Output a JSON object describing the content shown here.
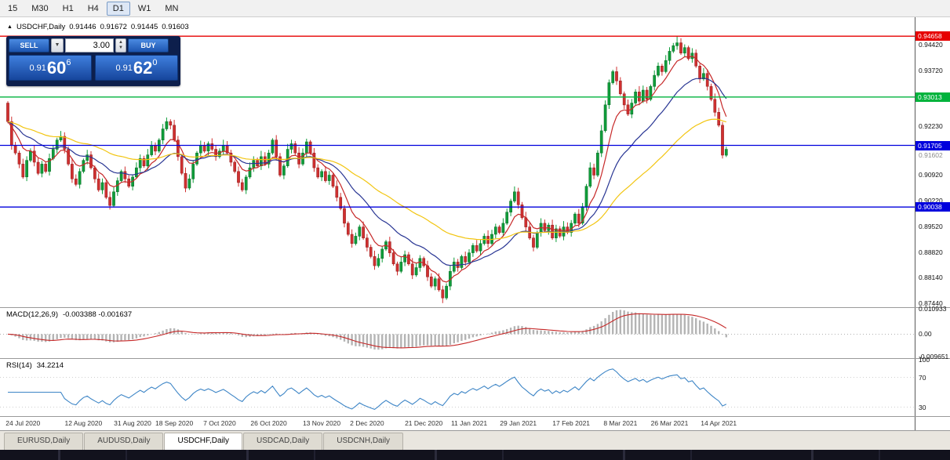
{
  "toolbar": {
    "timeframes": [
      {
        "label": "15",
        "active": false
      },
      {
        "label": "M30",
        "active": false
      },
      {
        "label": "H1",
        "active": false
      },
      {
        "label": "H4",
        "active": false
      },
      {
        "label": "D1",
        "active": true
      },
      {
        "label": "W1",
        "active": false
      },
      {
        "label": "MN",
        "active": false
      }
    ]
  },
  "chart": {
    "header": {
      "marker": "▲",
      "symbol": "USDCHF,Daily",
      "o": "0.91446",
      "h": "0.91672",
      "l": "0.91445",
      "c": "0.91603"
    },
    "one_click": {
      "sell_label": "SELL",
      "buy_label": "BUY",
      "volume": "3.00",
      "sell_price": {
        "prefix": "0.91",
        "big": "60",
        "sup": "6"
      },
      "buy_price": {
        "prefix": "0.91",
        "big": "62",
        "sup": "0"
      }
    },
    "levels": [
      {
        "label": "0.94658",
        "price": 0.94658,
        "color": "#e60000"
      },
      {
        "label": "0.93013",
        "price": 0.93013,
        "color": "#00b33c"
      },
      {
        "label": "0.91705",
        "price": 0.91705,
        "color": "#0000dd"
      },
      {
        "label": "0.90038",
        "price": 0.90038,
        "color": "#0000dd"
      }
    ],
    "current_price": {
      "label": "0.91602",
      "price": 0.91602
    },
    "price_axis": {
      "ticks": [
        "0.94420",
        "0.93720",
        "0.92230",
        "0.90920",
        "0.90220",
        "0.89520",
        "0.88820",
        "0.88140",
        "0.87440"
      ]
    }
  },
  "macd": {
    "name": "MACD(12,26,9)",
    "values": "-0.003388 -0.001637",
    "axis": [
      "0.010933",
      "0.00",
      "-0.009651"
    ]
  },
  "rsi": {
    "name": "RSI(14)",
    "value": "34.2214",
    "axis": [
      "100",
      "70",
      "30"
    ]
  },
  "date_axis": [
    {
      "label": "24 Jul 2020",
      "i": 4
    },
    {
      "label": "12 Aug 2020",
      "i": 20
    },
    {
      "label": "31 Aug 2020",
      "i": 33
    },
    {
      "label": "18 Sep 2020",
      "i": 44
    },
    {
      "label": "7 Oct 2020",
      "i": 56
    },
    {
      "label": "26 Oct 2020",
      "i": 69
    },
    {
      "label": "13 Nov 2020",
      "i": 83
    },
    {
      "label": "2 Dec 2020",
      "i": 95
    },
    {
      "label": "21 Dec 2020",
      "i": 110
    },
    {
      "label": "11 Jan 2021",
      "i": 122
    },
    {
      "label": "29 Jan 2021",
      "i": 135
    },
    {
      "label": "17 Feb 2021",
      "i": 149
    },
    {
      "label": "8 Mar 2021",
      "i": 162
    },
    {
      "label": "26 Mar 2021",
      "i": 175
    },
    {
      "label": "14 Apr 2021",
      "i": 188
    }
  ],
  "tabs": [
    {
      "label": "EURUSD,Daily",
      "active": false
    },
    {
      "label": "AUDUSD,Daily",
      "active": false
    },
    {
      "label": "USDCHF,Daily",
      "active": true
    },
    {
      "label": "USDCAD,Daily",
      "active": false
    },
    {
      "label": "USDCNH,Daily",
      "active": false
    }
  ],
  "chart_data": {
    "type": "candlestick",
    "symbol": "USDCHF",
    "timeframe": "Daily",
    "title": "USDCHF,Daily",
    "last_ohlc": {
      "open": 0.91446,
      "high": 0.91672,
      "low": 0.91445,
      "close": 0.91603
    },
    "price_range": {
      "top": 0.9517,
      "bottom": 0.8733
    },
    "key_levels": [
      0.94658,
      0.93013,
      0.91705,
      0.90038
    ],
    "first_open": 0.9285,
    "wick_base": 0.0005,
    "wick_step": 0.00012,
    "special_wicks": {
      "42": {
        "high": 0.9246
      },
      "115": {
        "low": 0.8744
      },
      "177": {
        "high": 0.9466
      },
      "189": {
        "low": 0.9135
      },
      "190": {
        "high": 0.9167
      }
    },
    "closes": [
      0.9235,
      0.917,
      0.915,
      0.912,
      0.9085,
      0.913,
      0.9155,
      0.9125,
      0.9095,
      0.912,
      0.91,
      0.9135,
      0.916,
      0.9185,
      0.9195,
      0.916,
      0.912,
      0.908,
      0.9065,
      0.91,
      0.913,
      0.9145,
      0.911,
      0.908,
      0.905,
      0.907,
      0.903,
      0.9008,
      0.9045,
      0.9075,
      0.91,
      0.908,
      0.906,
      0.9085,
      0.911,
      0.9135,
      0.9115,
      0.9145,
      0.917,
      0.9155,
      0.9185,
      0.9215,
      0.9235,
      0.9225,
      0.9185,
      0.914,
      0.9095,
      0.9055,
      0.908,
      0.912,
      0.915,
      0.917,
      0.9155,
      0.9175,
      0.916,
      0.914,
      0.9155,
      0.917,
      0.915,
      0.9125,
      0.91,
      0.907,
      0.905,
      0.9085,
      0.911,
      0.913,
      0.9115,
      0.914,
      0.912,
      0.915,
      0.9185,
      0.914,
      0.909,
      0.9115,
      0.916,
      0.9175,
      0.915,
      0.912,
      0.915,
      0.918,
      0.915,
      0.911,
      0.9085,
      0.91,
      0.9075,
      0.909,
      0.906,
      0.903,
      0.9,
      0.896,
      0.893,
      0.8905,
      0.8925,
      0.895,
      0.892,
      0.8895,
      0.887,
      0.8845,
      0.8865,
      0.889,
      0.891,
      0.888,
      0.885,
      0.883,
      0.8855,
      0.8875,
      0.885,
      0.882,
      0.884,
      0.8865,
      0.8845,
      0.8815,
      0.879,
      0.881,
      0.878,
      0.8758,
      0.879,
      0.883,
      0.8855,
      0.884,
      0.887,
      0.8855,
      0.888,
      0.89,
      0.8885,
      0.8905,
      0.8925,
      0.8905,
      0.893,
      0.895,
      0.8935,
      0.896,
      0.899,
      0.902,
      0.9045,
      0.901,
      0.8975,
      0.895,
      0.892,
      0.8895,
      0.8935,
      0.896,
      0.894,
      0.8955,
      0.892,
      0.8945,
      0.8925,
      0.895,
      0.8935,
      0.896,
      0.8985,
      0.896,
      0.9005,
      0.906,
      0.911,
      0.909,
      0.915,
      0.921,
      0.928,
      0.934,
      0.937,
      0.9345,
      0.931,
      0.928,
      0.9255,
      0.9285,
      0.9315,
      0.929,
      0.932,
      0.9295,
      0.933,
      0.936,
      0.9385,
      0.937,
      0.94,
      0.9425,
      0.944,
      0.9448,
      0.942,
      0.9435,
      0.9405,
      0.942,
      0.9385,
      0.935,
      0.9365,
      0.933,
      0.9295,
      0.926,
      0.9225,
      0.9144,
      0.916
    ],
    "colors": {
      "up": "#0f9d3a",
      "up_edge": "#0a6b27",
      "down": "#d03030",
      "down_edge": "#8d1e1e"
    },
    "overlays": [
      {
        "name": "ma-fast",
        "type": "ema",
        "period": 8,
        "color": "#c62828"
      },
      {
        "name": "ma-mid",
        "type": "ema",
        "period": 21,
        "color": "#283593"
      },
      {
        "name": "ma-slow",
        "type": "ema",
        "period": 50,
        "color": "#f2c511"
      }
    ],
    "indicators": {
      "macd": {
        "fast": 12,
        "slow": 26,
        "signal": 9,
        "histogram_color": "#b4b4b4",
        "signal_color": "#c62828",
        "last_values": [
          -0.003388,
          -0.001637
        ],
        "axis_max": 0.010933,
        "axis_min": -0.009651
      },
      "rsi": {
        "period": 14,
        "color": "#3d85c6",
        "levels": [
          70,
          30
        ],
        "last_value": 34.2214
      }
    }
  }
}
